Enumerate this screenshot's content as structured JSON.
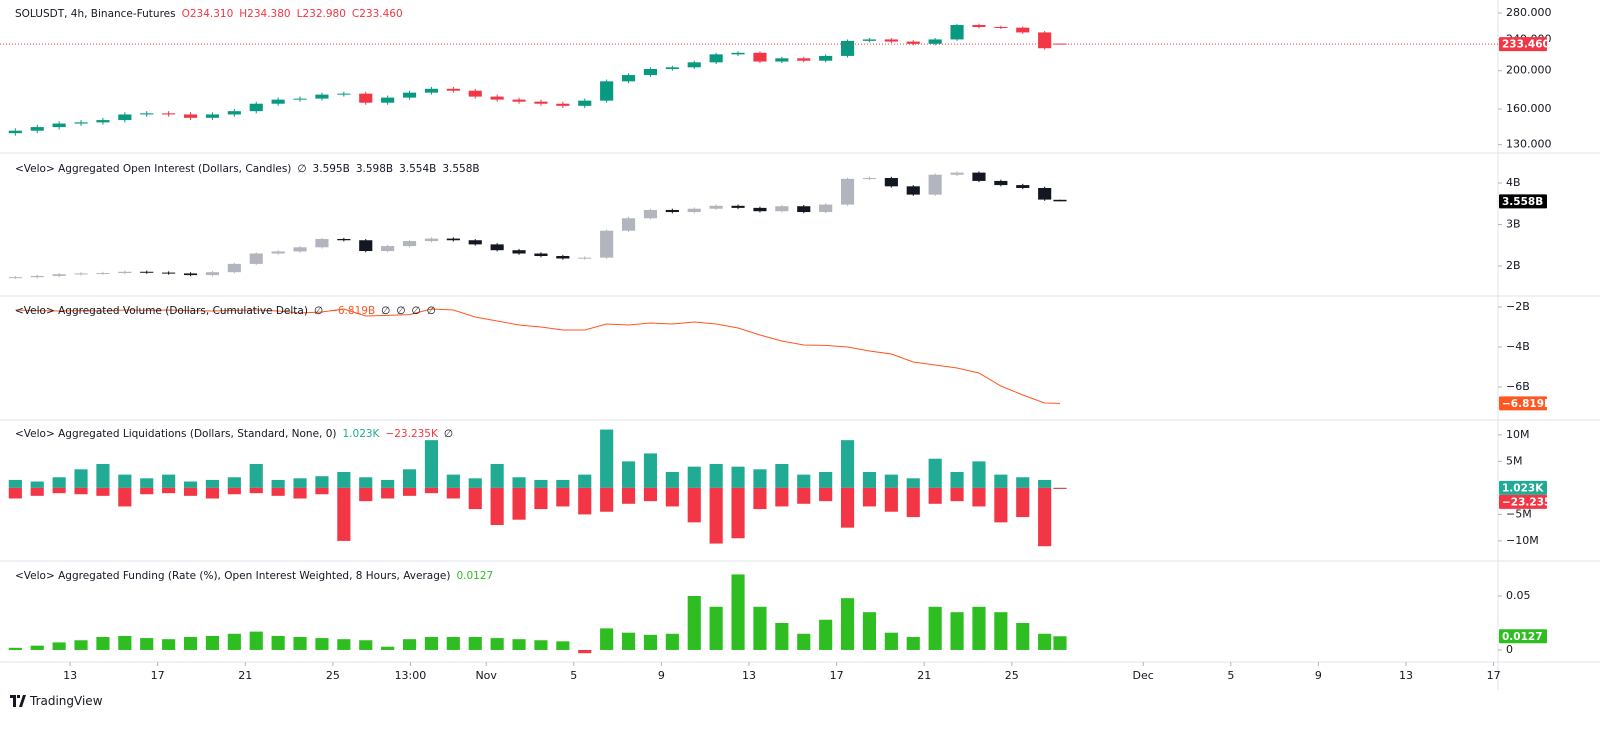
{
  "chart_data": [
    {
      "type": "candlestick",
      "title": "SOLUSDT, 4h, Binance-Futures",
      "legend_values": [
        "O234.310",
        "H234.380",
        "L232.980",
        "C233.460"
      ],
      "legend_colors": [
        "#f23645",
        "#f23645",
        "#f23645",
        "#f23645"
      ],
      "x": [
        9.5,
        10.5,
        11.5,
        12.5,
        13.5,
        14.5,
        15.5,
        16.5,
        17.5,
        18.5,
        19.5,
        20.5,
        21.5,
        22.5,
        23.5,
        24.5,
        25.5,
        26.5,
        27.5,
        28.5,
        29.5,
        30.5,
        31.5,
        32.5,
        33.5,
        34.5,
        35.5,
        36.5,
        37.5,
        38.5,
        39.5,
        40.5,
        41.5,
        42.5,
        43.5,
        44.5,
        45.5,
        46.5,
        47.5,
        48.5,
        49.5,
        50.5,
        51.5,
        52.5,
        53.5,
        54.5,
        55.5,
        56.5,
        57.2
      ],
      "open": [
        139,
        141,
        144,
        147,
        148,
        150,
        155,
        156,
        155,
        152,
        155,
        158,
        165,
        169,
        170,
        174,
        175,
        166,
        171,
        176,
        180,
        178,
        172,
        169,
        167,
        165,
        163,
        168,
        188,
        195,
        202,
        204,
        210,
        220,
        222,
        211,
        215,
        212,
        218,
        238,
        240,
        237,
        234,
        240,
        261,
        258,
        257,
        250,
        234.31
      ],
      "high": [
        143,
        146,
        149,
        150,
        152,
        157,
        158,
        158,
        157,
        157,
        160,
        167,
        171,
        172,
        176,
        177,
        177,
        173,
        178,
        182,
        182,
        180,
        174,
        171,
        169,
        167,
        170,
        190,
        197,
        204,
        206,
        212,
        222,
        224,
        224,
        217,
        217,
        220,
        240,
        242,
        242,
        239,
        242,
        263,
        263,
        260,
        259,
        252,
        234.38
      ],
      "low": [
        137,
        139,
        142,
        145,
        146,
        148,
        153,
        153,
        150,
        150,
        153,
        156,
        163,
        167,
        168,
        172,
        164,
        164,
        169,
        174,
        176,
        170,
        167,
        165,
        163,
        161,
        161,
        166,
        186,
        193,
        200,
        202,
        208,
        218,
        209,
        209,
        210,
        210,
        216,
        236,
        235,
        232,
        232,
        238,
        256,
        255,
        248,
        226,
        232.98
      ],
      "close": [
        141,
        144,
        147,
        148,
        150,
        155,
        156,
        155,
        152,
        155,
        158,
        165,
        169,
        170,
        174,
        175,
        166,
        171,
        176,
        180,
        178,
        172,
        169,
        167,
        165,
        163,
        168,
        188,
        195,
        202,
        204,
        210,
        220,
        222,
        211,
        215,
        212,
        218,
        238,
        240,
        237,
        234,
        240,
        261,
        258,
        257,
        250,
        228,
        233.46
      ],
      "up_color": "#089981",
      "down_color": "#f23645",
      "log_scale": true,
      "ylim": [
        126,
        302
      ],
      "yticks": [
        {
          "value": 280,
          "label": "280.000"
        },
        {
          "value": 240,
          "label": "240.000"
        },
        {
          "value": 200,
          "label": "200.000"
        },
        {
          "value": 160,
          "label": "160.000"
        },
        {
          "value": 130,
          "label": "130.000"
        }
      ],
      "last_value_label": "233.460",
      "last_label_color": "#f23645",
      "price_line": true
    },
    {
      "type": "candlestick",
      "title": "<Velo> Aggregated Open Interest (Dollars, Candles)",
      "legend_values": [
        "∅",
        "3.595B",
        "3.598B",
        "3.554B",
        "3.558B"
      ],
      "legend_colors": [
        "#131722",
        "#131722",
        "#131722",
        "#131722",
        "#131722"
      ],
      "x": [
        9.5,
        10.5,
        11.5,
        12.5,
        13.5,
        14.5,
        15.5,
        16.5,
        17.5,
        18.5,
        19.5,
        20.5,
        21.5,
        22.5,
        23.5,
        24.5,
        25.5,
        26.5,
        27.5,
        28.5,
        29.5,
        30.5,
        31.5,
        32.5,
        33.5,
        34.5,
        35.5,
        36.5,
        37.5,
        38.5,
        39.5,
        40.5,
        41.5,
        42.5,
        43.5,
        44.5,
        45.5,
        46.5,
        47.5,
        48.5,
        49.5,
        50.5,
        51.5,
        52.5,
        53.5,
        54.5,
        55.5,
        56.5,
        57.2
      ],
      "open": [
        1.72,
        1.73,
        1.76,
        1.8,
        1.82,
        1.83,
        1.86,
        1.84,
        1.82,
        1.78,
        1.85,
        2.05,
        2.3,
        2.35,
        2.45,
        2.65,
        2.62,
        2.36,
        2.48,
        2.6,
        2.66,
        2.62,
        2.52,
        2.38,
        2.3,
        2.24,
        2.18,
        2.2,
        2.85,
        3.15,
        3.35,
        3.3,
        3.38,
        3.45,
        3.4,
        3.32,
        3.44,
        3.3,
        3.48,
        4.1,
        4.12,
        3.92,
        3.72,
        4.2,
        4.25,
        4.05,
        3.95,
        3.88,
        3.595
      ],
      "high": [
        1.76,
        1.79,
        1.83,
        1.85,
        1.86,
        1.89,
        1.89,
        1.87,
        1.85,
        1.88,
        2.08,
        2.33,
        2.38,
        2.48,
        2.68,
        2.68,
        2.65,
        2.51,
        2.63,
        2.69,
        2.69,
        2.65,
        2.55,
        2.41,
        2.33,
        2.27,
        2.23,
        2.88,
        3.18,
        3.38,
        3.38,
        3.41,
        3.48,
        3.48,
        3.43,
        3.47,
        3.47,
        3.51,
        4.13,
        4.15,
        4.15,
        3.95,
        4.23,
        4.28,
        4.28,
        4.08,
        3.98,
        3.91,
        3.598
      ],
      "low": [
        1.69,
        1.7,
        1.73,
        1.77,
        1.79,
        1.8,
        1.81,
        1.79,
        1.75,
        1.75,
        1.82,
        2.02,
        2.27,
        2.32,
        2.42,
        2.59,
        2.33,
        2.33,
        2.45,
        2.57,
        2.59,
        2.49,
        2.35,
        2.27,
        2.21,
        2.15,
        2.15,
        2.17,
        2.82,
        3.12,
        3.27,
        3.27,
        3.35,
        3.37,
        3.29,
        3.29,
        3.27,
        3.27,
        3.45,
        4.07,
        3.89,
        3.69,
        3.69,
        4.17,
        4.02,
        3.92,
        3.85,
        3.57,
        3.554
      ],
      "close": [
        1.73,
        1.76,
        1.8,
        1.82,
        1.83,
        1.86,
        1.84,
        1.82,
        1.78,
        1.85,
        2.05,
        2.3,
        2.35,
        2.45,
        2.65,
        2.62,
        2.36,
        2.48,
        2.6,
        2.66,
        2.62,
        2.52,
        2.38,
        2.3,
        2.24,
        2.18,
        2.2,
        2.85,
        3.15,
        3.35,
        3.3,
        3.38,
        3.45,
        3.4,
        3.32,
        3.44,
        3.3,
        3.48,
        4.1,
        4.12,
        3.92,
        3.72,
        4.2,
        4.25,
        4.05,
        3.95,
        3.88,
        3.6,
        3.558
      ],
      "up_color": "#b2b5be",
      "down_color": "#131722",
      "ylim": [
        1.3,
        4.675
      ],
      "yticks": [
        {
          "value": 4,
          "label": "4B"
        },
        {
          "value": 3,
          "label": "3B"
        },
        {
          "value": 2,
          "label": "2B"
        }
      ],
      "last_value_label": "3.558B",
      "last_label_color": "#000000"
    },
    {
      "type": "line",
      "title": "<Velo> Aggregated Volume (Dollars, Cumulative Delta)",
      "legend_values": [
        "∅",
        "−6.819B",
        "∅",
        "∅",
        "∅",
        "∅"
      ],
      "legend_colors": [
        "#131722",
        "#ff5722",
        "#131722",
        "#131722",
        "#131722",
        "#131722"
      ],
      "x": [
        9.5,
        10.5,
        11.5,
        12.5,
        13.5,
        14.5,
        15.5,
        16.5,
        17.5,
        18.5,
        19.5,
        20.5,
        21.5,
        22.5,
        23.5,
        24.5,
        25.5,
        26.5,
        27.5,
        28.5,
        29.5,
        30.5,
        31.5,
        32.5,
        33.5,
        34.5,
        35.5,
        36.5,
        37.5,
        38.5,
        39.5,
        40.5,
        41.5,
        42.5,
        43.5,
        44.5,
        45.5,
        46.5,
        47.5,
        48.5,
        49.5,
        50.5,
        51.5,
        52.5,
        53.5,
        54.5,
        55.5,
        56.5,
        57.2
      ],
      "values": [
        -2.15,
        -2.18,
        -2.2,
        -2.18,
        -2.2,
        -2.15,
        -2.17,
        -2.15,
        -2.18,
        -2.2,
        -2.17,
        -2.15,
        -2.2,
        -2.3,
        -2.25,
        -2.1,
        -2.45,
        -2.42,
        -2.38,
        -2.1,
        -2.15,
        -2.5,
        -2.7,
        -2.9,
        -3.0,
        -3.15,
        -3.15,
        -2.85,
        -2.9,
        -2.8,
        -2.85,
        -2.75,
        -2.85,
        -3.05,
        -3.4,
        -3.7,
        -3.9,
        -3.92,
        -4.0,
        -4.2,
        -4.35,
        -4.75,
        -4.9,
        -5.05,
        -5.3,
        -5.95,
        -6.4,
        -6.8,
        -6.819
      ],
      "color": "#ff5722",
      "ylim": [
        -7.65,
        -1.5
      ],
      "yticks": [
        {
          "value": -2,
          "label": "−2B"
        },
        {
          "value": -4,
          "label": "−4B"
        },
        {
          "value": -6,
          "label": "−6B"
        }
      ],
      "last_value_label": "−6.819B",
      "last_label_color": "#ff5722"
    },
    {
      "type": "bar",
      "title": "<Velo> Aggregated Liquidations (Dollars, Standard, None, 0)",
      "legend_values": [
        "1.023K",
        "−23.235K",
        "∅"
      ],
      "legend_colors": [
        "#22ab94",
        "#f23645",
        "#131722"
      ],
      "x": [
        9.5,
        10.5,
        11.5,
        12.5,
        13.5,
        14.5,
        15.5,
        16.5,
        17.5,
        18.5,
        19.5,
        20.5,
        21.5,
        22.5,
        23.5,
        24.5,
        25.5,
        26.5,
        27.5,
        28.5,
        29.5,
        30.5,
        31.5,
        32.5,
        33.5,
        34.5,
        35.5,
        36.5,
        37.5,
        38.5,
        39.5,
        40.5,
        41.5,
        42.5,
        43.5,
        44.5,
        45.5,
        46.5,
        47.5,
        48.5,
        49.5,
        50.5,
        51.5,
        52.5,
        53.5,
        54.5,
        55.5,
        56.5,
        57.2
      ],
      "series": [
        {
          "color": "#22ab94",
          "last_value_label": "1.023K",
          "values": [
            1.5,
            1.2,
            2.0,
            3.5,
            4.5,
            2.5,
            1.8,
            2.5,
            1.2,
            1.5,
            2.0,
            4.5,
            1.5,
            1.8,
            2.2,
            3.0,
            2.0,
            1.5,
            3.5,
            9.0,
            2.5,
            1.8,
            4.5,
            2.0,
            1.5,
            1.5,
            2.5,
            11.0,
            5.0,
            6.5,
            3.0,
            4.0,
            4.5,
            4.0,
            3.5,
            4.5,
            2.5,
            3.0,
            9.0,
            3.0,
            2.5,
            1.8,
            5.5,
            3.0,
            5.0,
            2.5,
            2.0,
            1.5,
            0.001023
          ]
        },
        {
          "color": "#f23645",
          "last_value_label": "−23.235K",
          "values": [
            -2,
            -1.5,
            -1,
            -1.2,
            -1.5,
            -3.5,
            -1.2,
            -1,
            -1.5,
            -2,
            -1.2,
            -1,
            -1.5,
            -2,
            -1.2,
            -10,
            -2.5,
            -2,
            -1.5,
            -1,
            -2,
            -4,
            -7,
            -6,
            -4,
            -3.5,
            -5,
            -4.5,
            -3,
            -2.5,
            -3.5,
            -6.5,
            -10.5,
            -9.5,
            -4,
            -3.5,
            -3,
            -2.5,
            -7.5,
            -3.5,
            -4.5,
            -5.5,
            -3,
            -2.5,
            -3.5,
            -6.5,
            -5.5,
            -11,
            -0.023235
          ]
        }
      ],
      "ylim": [
        -13.6,
        12.8
      ],
      "yticks": [
        {
          "value": 10,
          "label": "10M"
        },
        {
          "value": 5,
          "label": "5M"
        },
        {
          "value": -5,
          "label": "−5M"
        },
        {
          "value": -10,
          "label": "−10M"
        }
      ]
    },
    {
      "type": "bar",
      "title": "<Velo> Aggregated Funding (Rate (%), Open Interest Weighted, 8 Hours, Average)",
      "legend_values": [
        "0.0127"
      ],
      "legend_colors": [
        "#2fbe22"
      ],
      "x": [
        9.5,
        10.5,
        11.5,
        12.5,
        13.5,
        14.5,
        15.5,
        16.5,
        17.5,
        18.5,
        19.5,
        20.5,
        21.5,
        22.5,
        23.5,
        24.5,
        25.5,
        26.5,
        27.5,
        28.5,
        29.5,
        30.5,
        31.5,
        32.5,
        33.5,
        34.5,
        35.5,
        36.5,
        37.5,
        38.5,
        39.5,
        40.5,
        41.5,
        42.5,
        43.5,
        44.5,
        45.5,
        46.5,
        47.5,
        48.5,
        49.5,
        50.5,
        51.5,
        52.5,
        53.5,
        54.5,
        55.5,
        56.5,
        57.2
      ],
      "values": [
        0.002,
        0.004,
        0.007,
        0.009,
        0.012,
        0.013,
        0.011,
        0.01,
        0.012,
        0.013,
        0.015,
        0.017,
        0.013,
        0.012,
        0.011,
        0.01,
        0.009,
        0.003,
        0.01,
        0.012,
        0.012,
        0.012,
        0.011,
        0.01,
        0.009,
        0.008,
        -0.003,
        0.02,
        0.016,
        0.014,
        0.015,
        0.05,
        0.04,
        0.07,
        0.04,
        0.025,
        0.015,
        0.028,
        0.048,
        0.035,
        0.016,
        0.012,
        0.04,
        0.035,
        0.04,
        0.035,
        0.025,
        0.015,
        0.0127
      ],
      "color": "#2fbe22",
      "negative_color": "#f23645",
      "ylim": [
        -0.0093,
        0.0815
      ],
      "yticks": [
        0.05,
        0
      ],
      "last_value_label": "0.0127",
      "last_label_color": "#2fbe22"
    }
  ],
  "x_axis": {
    "xlim": [
      8.8,
      77.2
    ],
    "xticks": [
      {
        "value": 12,
        "label": "13"
      },
      {
        "value": 16,
        "label": "17"
      },
      {
        "value": 20,
        "label": "21"
      },
      {
        "value": 24,
        "label": "25"
      },
      {
        "value": 27.54,
        "label": "13:00"
      },
      {
        "value": 31,
        "label": "Nov"
      },
      {
        "value": 35,
        "label": "5"
      },
      {
        "value": 39,
        "label": "9"
      },
      {
        "value": 43,
        "label": "13"
      },
      {
        "value": 47,
        "label": "17"
      },
      {
        "value": 51,
        "label": "21"
      },
      {
        "value": 55,
        "label": "25"
      },
      {
        "value": 61,
        "label": "Dec"
      },
      {
        "value": 65,
        "label": "5"
      },
      {
        "value": 69,
        "label": "9"
      },
      {
        "value": 73,
        "label": "13"
      },
      {
        "value": 77,
        "label": "17"
      }
    ]
  },
  "footer": "TradingView"
}
